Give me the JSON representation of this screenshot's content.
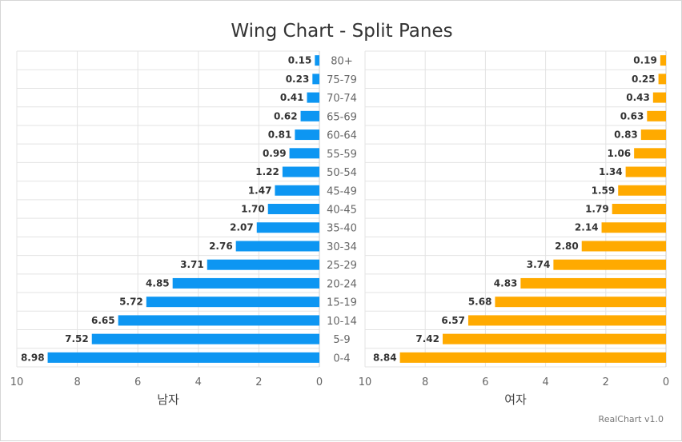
{
  "chart_data": {
    "type": "bar",
    "orientation": "horizontal",
    "layout": "wing-split-panes",
    "title": "Wing Chart - Split Panes",
    "categories": [
      "80+",
      "75-79",
      "70-74",
      "65-69",
      "60-64",
      "55-59",
      "50-54",
      "45-49",
      "40-45",
      "35-40",
      "30-34",
      "25-29",
      "20-24",
      "15-19",
      "10-14",
      "5-9",
      "0-4"
    ],
    "series": [
      {
        "name": "남자",
        "color": "#0d96f2",
        "pane": "left",
        "values": [
          0.15,
          0.23,
          0.41,
          0.62,
          0.81,
          0.99,
          1.22,
          1.47,
          1.7,
          2.07,
          2.76,
          3.71,
          4.85,
          5.72,
          6.65,
          7.52,
          8.98
        ],
        "labels": [
          "0.15",
          "0.23",
          "0.41",
          "0.62",
          "0.81",
          "0.99",
          "1.22",
          "1.47",
          "1.70",
          "2.07",
          "2.76",
          "3.71",
          "4.85",
          "5.72",
          "6.65",
          "7.52",
          "8.98"
        ]
      },
      {
        "name": "여자",
        "color": "#ffaa00",
        "pane": "right",
        "values": [
          0.19,
          0.25,
          0.43,
          0.63,
          0.83,
          1.06,
          1.34,
          1.59,
          1.79,
          2.14,
          2.8,
          3.74,
          4.83,
          5.68,
          6.57,
          7.42,
          8.84
        ],
        "labels": [
          "0.19",
          "0.25",
          "0.43",
          "0.63",
          "0.83",
          "1.06",
          "1.34",
          "1.59",
          "1.79",
          "2.14",
          "2.80",
          "3.74",
          "4.83",
          "5.68",
          "6.57",
          "7.42",
          "8.84"
        ]
      }
    ],
    "xlim": [
      0,
      10
    ],
    "ticks": [
      "10",
      "8",
      "6",
      "4",
      "2",
      "0"
    ],
    "tick_values": [
      10,
      8,
      6,
      4,
      2,
      0
    ],
    "xlabel_left": "남자",
    "xlabel_right": "여자",
    "grid": true,
    "reversed": true
  },
  "credits": "RealChart v1.0"
}
